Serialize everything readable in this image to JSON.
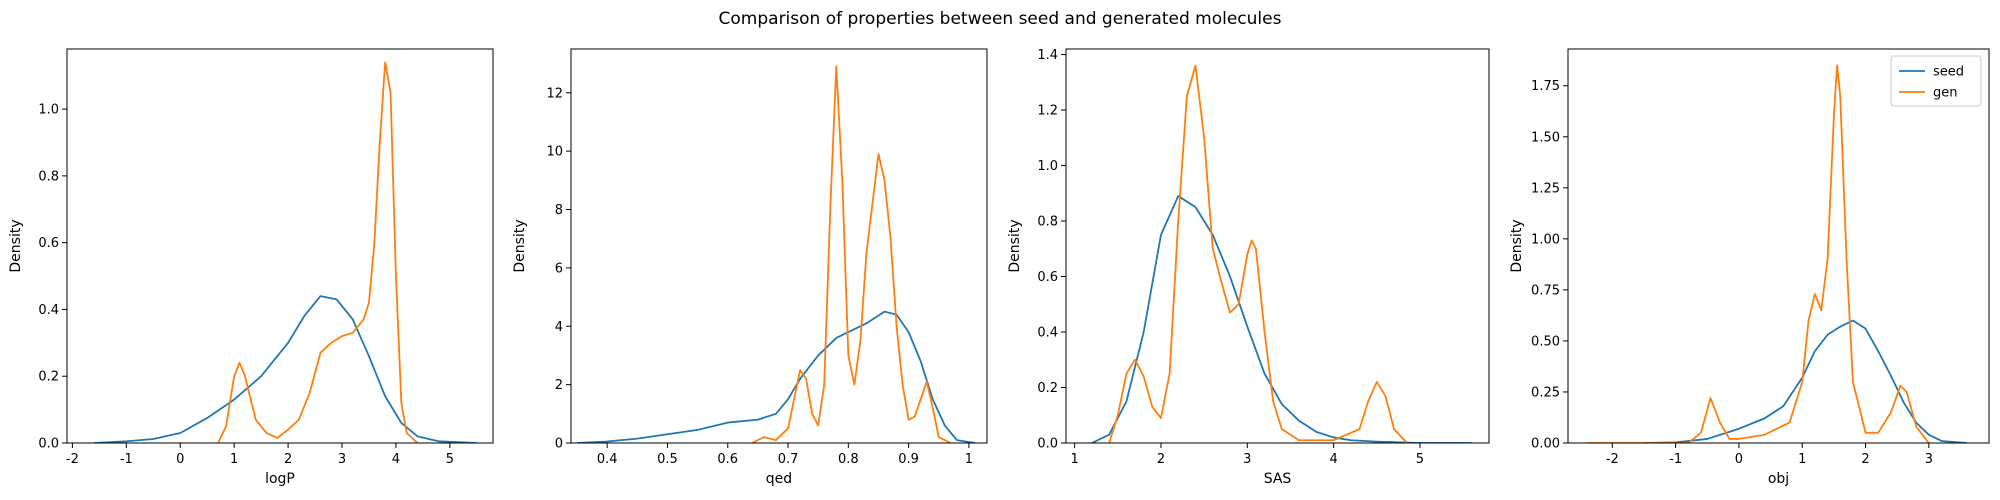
{
  "chart_data": {
    "type": "line",
    "suptitle": "Comparison of properties between seed and generated molecules",
    "series_styles": [
      {
        "key": "seed",
        "name": "seed",
        "color": "#1f77b4"
      },
      {
        "key": "gen",
        "name": "gen",
        "color": "#ff7f0e"
      }
    ],
    "legend": {
      "placement": "upper right",
      "panel": 3,
      "entries": [
        "seed",
        "gen"
      ]
    },
    "panels": [
      {
        "xlabel": "logP",
        "ylabel": "Density",
        "xlim": [
          -2.1,
          5.8
        ],
        "ylim": [
          0,
          1.18
        ],
        "xticks": [
          -2,
          -1,
          0,
          1,
          2,
          3,
          4,
          5
        ],
        "yticks": [
          0.0,
          0.2,
          0.4,
          0.6,
          0.8,
          1.0
        ],
        "ytick_labels": [
          "0.0",
          "0.2",
          "0.4",
          "0.6",
          "0.8",
          "1.0"
        ],
        "series": {
          "seed": [
            [
              -1.6,
              0.0
            ],
            [
              -1.0,
              0.005
            ],
            [
              -0.5,
              0.012
            ],
            [
              0.0,
              0.03
            ],
            [
              0.5,
              0.075
            ],
            [
              1.0,
              0.13
            ],
            [
              1.5,
              0.2
            ],
            [
              2.0,
              0.3
            ],
            [
              2.3,
              0.38
            ],
            [
              2.6,
              0.44
            ],
            [
              2.9,
              0.43
            ],
            [
              3.2,
              0.37
            ],
            [
              3.5,
              0.26
            ],
            [
              3.8,
              0.14
            ],
            [
              4.1,
              0.06
            ],
            [
              4.4,
              0.02
            ],
            [
              4.8,
              0.005
            ],
            [
              5.5,
              0.0
            ]
          ],
          "gen": [
            [
              0.7,
              0.0
            ],
            [
              0.85,
              0.05
            ],
            [
              1.0,
              0.2
            ],
            [
              1.1,
              0.24
            ],
            [
              1.2,
              0.2
            ],
            [
              1.4,
              0.07
            ],
            [
              1.6,
              0.03
            ],
            [
              1.8,
              0.015
            ],
            [
              2.0,
              0.04
            ],
            [
              2.2,
              0.07
            ],
            [
              2.4,
              0.15
            ],
            [
              2.6,
              0.27
            ],
            [
              2.8,
              0.3
            ],
            [
              3.0,
              0.32
            ],
            [
              3.2,
              0.33
            ],
            [
              3.4,
              0.37
            ],
            [
              3.5,
              0.42
            ],
            [
              3.6,
              0.6
            ],
            [
              3.7,
              0.9
            ],
            [
              3.8,
              1.14
            ],
            [
              3.9,
              1.05
            ],
            [
              4.0,
              0.5
            ],
            [
              4.1,
              0.12
            ],
            [
              4.2,
              0.03
            ],
            [
              4.4,
              0.0
            ]
          ]
        }
      },
      {
        "xlabel": "qed",
        "ylabel": "Density",
        "xlim": [
          0.34,
          1.03
        ],
        "ylim": [
          0,
          13.5
        ],
        "xticks": [
          0.4,
          0.5,
          0.6,
          0.7,
          0.8,
          0.9,
          1.0
        ],
        "yticks": [
          0,
          2,
          4,
          6,
          8,
          10,
          12
        ],
        "ytick_labels": [
          "0",
          "2",
          "4",
          "6",
          "8",
          "10",
          "12"
        ],
        "series": {
          "seed": [
            [
              0.35,
              0.0
            ],
            [
              0.4,
              0.05
            ],
            [
              0.45,
              0.15
            ],
            [
              0.5,
              0.3
            ],
            [
              0.55,
              0.45
            ],
            [
              0.6,
              0.7
            ],
            [
              0.65,
              0.8
            ],
            [
              0.68,
              1.0
            ],
            [
              0.7,
              1.5
            ],
            [
              0.72,
              2.2
            ],
            [
              0.75,
              3.0
            ],
            [
              0.78,
              3.6
            ],
            [
              0.8,
              3.8
            ],
            [
              0.83,
              4.1
            ],
            [
              0.86,
              4.5
            ],
            [
              0.88,
              4.4
            ],
            [
              0.9,
              3.8
            ],
            [
              0.92,
              2.8
            ],
            [
              0.94,
              1.5
            ],
            [
              0.96,
              0.6
            ],
            [
              0.98,
              0.1
            ],
            [
              1.01,
              0.0
            ]
          ],
          "gen": [
            [
              0.64,
              0.0
            ],
            [
              0.66,
              0.2
            ],
            [
              0.68,
              0.1
            ],
            [
              0.7,
              0.5
            ],
            [
              0.72,
              2.5
            ],
            [
              0.73,
              2.2
            ],
            [
              0.74,
              1.0
            ],
            [
              0.75,
              0.6
            ],
            [
              0.76,
              2.0
            ],
            [
              0.77,
              8.0
            ],
            [
              0.78,
              12.9
            ],
            [
              0.79,
              9.0
            ],
            [
              0.8,
              3.0
            ],
            [
              0.81,
              2.0
            ],
            [
              0.82,
              3.5
            ],
            [
              0.83,
              6.5
            ],
            [
              0.85,
              9.9
            ],
            [
              0.86,
              9.0
            ],
            [
              0.87,
              7.0
            ],
            [
              0.88,
              4.0
            ],
            [
              0.89,
              2.0
            ],
            [
              0.9,
              0.8
            ],
            [
              0.91,
              0.9
            ],
            [
              0.92,
              1.5
            ],
            [
              0.93,
              2.1
            ],
            [
              0.94,
              1.2
            ],
            [
              0.95,
              0.2
            ],
            [
              0.97,
              0.0
            ]
          ]
        }
      },
      {
        "xlabel": "SAS",
        "ylabel": "Density",
        "xlim": [
          0.9,
          5.8
        ],
        "ylim": [
          0,
          1.42
        ],
        "xticks": [
          1,
          2,
          3,
          4,
          5
        ],
        "yticks": [
          0.0,
          0.2,
          0.4,
          0.6,
          0.8,
          1.0,
          1.2,
          1.4
        ],
        "ytick_labels": [
          "0.0",
          "0.2",
          "0.4",
          "0.6",
          "0.8",
          "1.0",
          "1.2",
          "1.4"
        ],
        "series": {
          "seed": [
            [
              1.2,
              0.0
            ],
            [
              1.4,
              0.03
            ],
            [
              1.6,
              0.15
            ],
            [
              1.8,
              0.4
            ],
            [
              2.0,
              0.75
            ],
            [
              2.2,
              0.89
            ],
            [
              2.4,
              0.85
            ],
            [
              2.6,
              0.75
            ],
            [
              2.8,
              0.6
            ],
            [
              3.0,
              0.42
            ],
            [
              3.2,
              0.25
            ],
            [
              3.4,
              0.14
            ],
            [
              3.6,
              0.08
            ],
            [
              3.8,
              0.04
            ],
            [
              4.0,
              0.02
            ],
            [
              4.2,
              0.01
            ],
            [
              4.5,
              0.005
            ],
            [
              5.0,
              0.0
            ],
            [
              5.6,
              0.0
            ]
          ],
          "gen": [
            [
              1.4,
              0.0
            ],
            [
              1.5,
              0.1
            ],
            [
              1.6,
              0.25
            ],
            [
              1.7,
              0.3
            ],
            [
              1.8,
              0.24
            ],
            [
              1.9,
              0.13
            ],
            [
              2.0,
              0.09
            ],
            [
              2.1,
              0.25
            ],
            [
              2.2,
              0.8
            ],
            [
              2.3,
              1.25
            ],
            [
              2.4,
              1.36
            ],
            [
              2.5,
              1.1
            ],
            [
              2.6,
              0.7
            ],
            [
              2.7,
              0.58
            ],
            [
              2.8,
              0.47
            ],
            [
              2.9,
              0.5
            ],
            [
              3.0,
              0.68
            ],
            [
              3.05,
              0.73
            ],
            [
              3.1,
              0.7
            ],
            [
              3.2,
              0.4
            ],
            [
              3.3,
              0.15
            ],
            [
              3.4,
              0.05
            ],
            [
              3.6,
              0.01
            ],
            [
              4.0,
              0.01
            ],
            [
              4.3,
              0.05
            ],
            [
              4.4,
              0.15
            ],
            [
              4.5,
              0.22
            ],
            [
              4.6,
              0.17
            ],
            [
              4.7,
              0.05
            ],
            [
              4.85,
              0.0
            ]
          ]
        }
      },
      {
        "xlabel": "obj",
        "ylabel": "Density",
        "xlim": [
          -2.7,
          3.95
        ],
        "ylim": [
          0,
          1.93
        ],
        "xticks": [
          -2,
          -1,
          0,
          1,
          2,
          3
        ],
        "yticks": [
          0.0,
          0.25,
          0.5,
          0.75,
          1.0,
          1.25,
          1.5,
          1.75
        ],
        "ytick_labels": [
          "0.00",
          "0.25",
          "0.50",
          "0.75",
          "1.00",
          "1.25",
          "1.50",
          "1.75"
        ],
        "series": {
          "seed": [
            [
              -1.5,
              0.0
            ],
            [
              -1.0,
              0.003
            ],
            [
              -0.5,
              0.02
            ],
            [
              0.0,
              0.07
            ],
            [
              0.4,
              0.12
            ],
            [
              0.7,
              0.18
            ],
            [
              1.0,
              0.32
            ],
            [
              1.2,
              0.45
            ],
            [
              1.4,
              0.53
            ],
            [
              1.6,
              0.57
            ],
            [
              1.8,
              0.6
            ],
            [
              2.0,
              0.56
            ],
            [
              2.2,
              0.45
            ],
            [
              2.4,
              0.33
            ],
            [
              2.6,
              0.2
            ],
            [
              2.8,
              0.1
            ],
            [
              3.0,
              0.04
            ],
            [
              3.2,
              0.01
            ],
            [
              3.6,
              0.0
            ]
          ],
          "gen": [
            [
              -2.4,
              0.0
            ],
            [
              -0.8,
              0.0
            ],
            [
              -0.6,
              0.05
            ],
            [
              -0.45,
              0.22
            ],
            [
              -0.3,
              0.1
            ],
            [
              -0.15,
              0.02
            ],
            [
              0.0,
              0.02
            ],
            [
              0.4,
              0.04
            ],
            [
              0.8,
              0.1
            ],
            [
              1.0,
              0.3
            ],
            [
              1.1,
              0.6
            ],
            [
              1.2,
              0.73
            ],
            [
              1.3,
              0.65
            ],
            [
              1.4,
              0.9
            ],
            [
              1.5,
              1.6
            ],
            [
              1.55,
              1.85
            ],
            [
              1.6,
              1.7
            ],
            [
              1.7,
              0.9
            ],
            [
              1.8,
              0.3
            ],
            [
              2.0,
              0.05
            ],
            [
              2.2,
              0.05
            ],
            [
              2.4,
              0.15
            ],
            [
              2.55,
              0.28
            ],
            [
              2.65,
              0.25
            ],
            [
              2.8,
              0.08
            ],
            [
              3.0,
              0.0
            ]
          ]
        }
      }
    ]
  }
}
